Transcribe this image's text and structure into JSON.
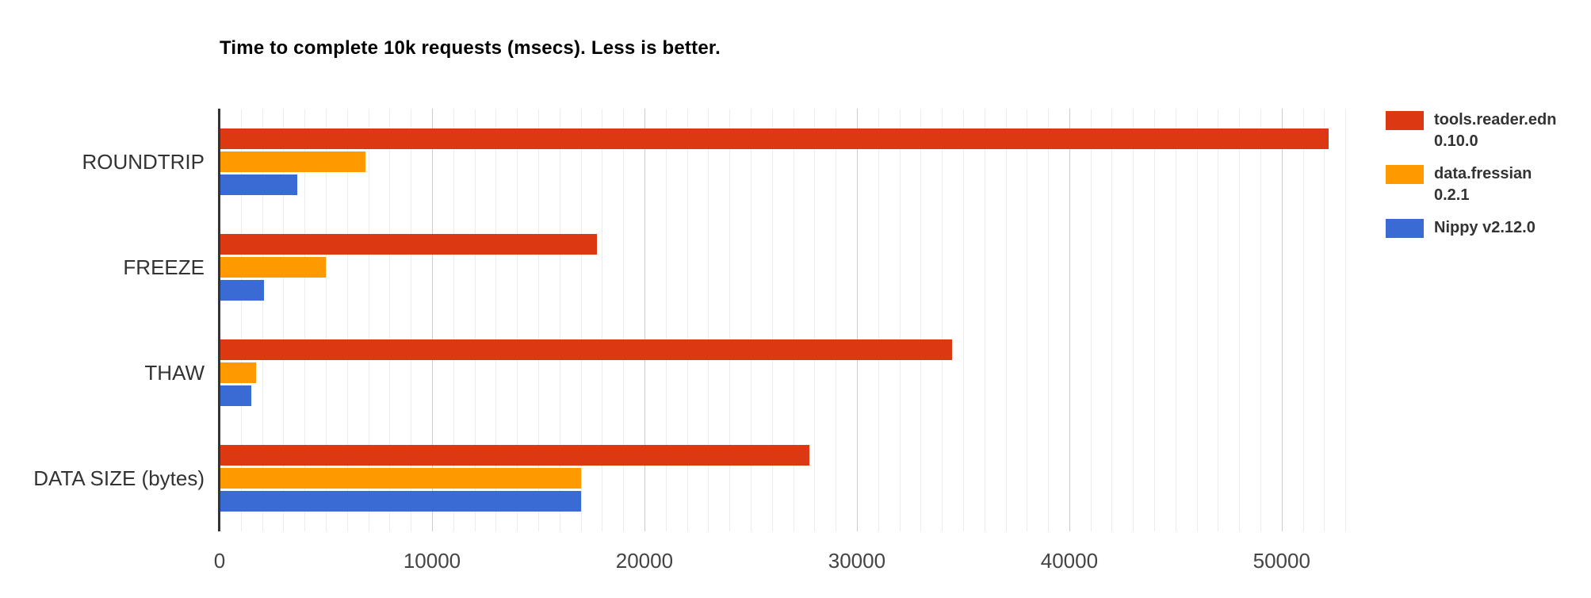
{
  "title": "Time to complete 10k requests (msecs). Less is better.",
  "chart_data": {
    "type": "bar",
    "orientation": "horizontal",
    "title": "Time to complete 10k requests (msecs). Less is better.",
    "categories": [
      "ROUNDTRIP",
      "FREEZE",
      "THAW",
      "DATA SIZE (bytes)"
    ],
    "series": [
      {
        "name": "tools.reader.edn 0.10.0",
        "legend_lines": [
          "tools.reader.edn",
          "0.10.0"
        ],
        "color": "#dc3912",
        "values": [
          52200,
          17770,
          34480,
          27750
        ]
      },
      {
        "name": "data.fressian 0.2.1",
        "legend_lines": [
          "data.fressian",
          "0.2.1"
        ],
        "color": "#ff9900",
        "values": [
          6870,
          5000,
          1700,
          17000
        ]
      },
      {
        "name": "Nippy v2.12.0",
        "legend_lines": [
          "Nippy v2.12.0"
        ],
        "color": "#3a6bd5",
        "values": [
          3650,
          2080,
          1480,
          17000
        ]
      }
    ],
    "xlabel": "",
    "ylabel": "",
    "xlim": [
      0,
      54000
    ],
    "x_ticks": [
      0,
      10000,
      20000,
      30000,
      40000,
      50000
    ],
    "x_tick_labels": [
      "0",
      "10000",
      "20000",
      "30000",
      "40000",
      "50000"
    ],
    "minor_grid_step": 1000,
    "major_grid_step": 10000,
    "grid": true,
    "legend_position": "right"
  }
}
